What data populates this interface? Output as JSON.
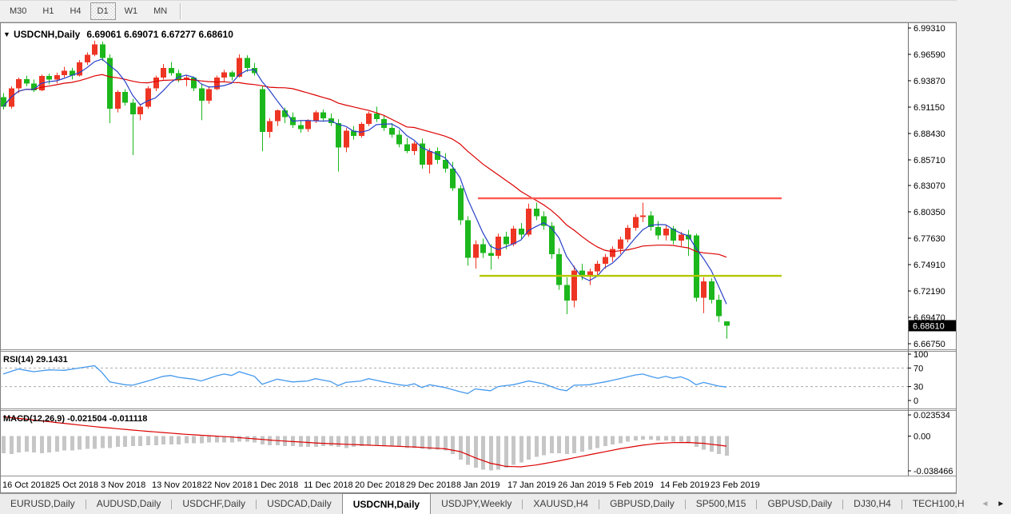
{
  "toolbar": {
    "timeframes": [
      "M30",
      "H1",
      "H4",
      "D1",
      "W1",
      "MN"
    ],
    "active": "D1"
  },
  "icons": {
    "dropdown": "▼",
    "scroll_left": "◄",
    "scroll_right": "►"
  },
  "window": {
    "title_symbol": "USDCNH,Daily",
    "title_ohlc": "6.69061 6.69071 6.67277 6.68610"
  },
  "chart_data": {
    "type": "candlestick",
    "symbol": "USDCNH",
    "timeframe": "Daily",
    "ohlc_display": {
      "open": "6.69061",
      "high": "6.69071",
      "low": "6.67277",
      "close": "6.68610"
    },
    "current_price": "6.68610",
    "current_price_value": 6.6861,
    "y_ticks": [
      {
        "text": "6.99310",
        "v": 6.9931
      },
      {
        "text": "6.96590",
        "v": 6.9659
      },
      {
        "text": "6.93870",
        "v": 6.9387
      },
      {
        "text": "6.91150",
        "v": 6.9115
      },
      {
        "text": "6.88430",
        "v": 6.8843
      },
      {
        "text": "6.85710",
        "v": 6.8571
      },
      {
        "text": "6.83070",
        "v": 6.8307
      },
      {
        "text": "6.80350",
        "v": 6.8035
      },
      {
        "text": "6.77630",
        "v": 6.7763
      },
      {
        "text": "6.74910",
        "v": 6.7491
      },
      {
        "text": "6.72190",
        "v": 6.7219
      },
      {
        "text": "6.69470",
        "v": 6.6947
      },
      {
        "text": "6.66750",
        "v": 6.6675
      }
    ],
    "x_labels": [
      {
        "text": "16 Oct 2018",
        "x": 3
      },
      {
        "text": "25 Oct 2018",
        "x": 63
      },
      {
        "text": "3 Nov 2018",
        "x": 126
      },
      {
        "text": "13 Nov 2018",
        "x": 190
      },
      {
        "text": "22 Nov 2018",
        "x": 253
      },
      {
        "text": "1 Dec 2018",
        "x": 317
      },
      {
        "text": "11 Dec 2018",
        "x": 380
      },
      {
        "text": "20 Dec 2018",
        "x": 444
      },
      {
        "text": "29 Dec 2018",
        "x": 508
      },
      {
        "text": "8 Jan 2019",
        "x": 571
      },
      {
        "text": "17 Jan 2019",
        "x": 635
      },
      {
        "text": "26 Jan 2019",
        "x": 698
      },
      {
        "text": "5 Feb 2019",
        "x": 762
      },
      {
        "text": "14 Feb 2019",
        "x": 826
      },
      {
        "text": "23 Feb 2019",
        "x": 889
      }
    ],
    "colors": {
      "bull": "#EE3524",
      "bear": "#1CB71C",
      "ma_fast": "#2840C8",
      "ma_slow": "#DC0000",
      "hist": "#C6C6C6",
      "signal": "#DC0000",
      "rsi": "#4499EE",
      "res_line": "#FF5A52",
      "sup_line": "#B4C800"
    },
    "hlines": [
      {
        "name": "resistance",
        "value": 6.8175,
        "x1": 598,
        "x2": 978,
        "color": "#FF5A52"
      },
      {
        "name": "support",
        "value": 6.7375,
        "x1": 600,
        "x2": 978,
        "color": "#B4C800"
      }
    ],
    "ma_fast_period": 5,
    "ma_slow_period": 20,
    "candles": [
      [
        6.922,
        6.926,
        6.909,
        6.912
      ],
      [
        6.912,
        6.933,
        6.91,
        6.931
      ],
      [
        6.931,
        6.942,
        6.926,
        6.9405
      ],
      [
        6.9405,
        6.944,
        6.933,
        6.936
      ],
      [
        6.936,
        6.94,
        6.927,
        6.929
      ],
      [
        6.929,
        6.945,
        6.928,
        6.9435
      ],
      [
        6.9435,
        6.946,
        6.935,
        6.94
      ],
      [
        6.94,
        6.947,
        6.936,
        6.9445
      ],
      [
        6.9445,
        6.953,
        6.942,
        6.949
      ],
      [
        6.949,
        6.952,
        6.94,
        6.944
      ],
      [
        6.944,
        6.96,
        6.943,
        6.9575
      ],
      [
        6.9575,
        6.968,
        6.955,
        6.9655
      ],
      [
        6.9655,
        6.98,
        6.964,
        6.976
      ],
      [
        6.976,
        6.979,
        6.959,
        6.962
      ],
      [
        6.962,
        6.966,
        6.895,
        6.91
      ],
      [
        6.91,
        6.929,
        6.906,
        6.927
      ],
      [
        6.927,
        6.93,
        6.913,
        6.916
      ],
      [
        6.916,
        6.92,
        6.862,
        6.904
      ],
      [
        6.904,
        6.915,
        6.898,
        6.912
      ],
      [
        6.912,
        6.933,
        6.91,
        6.931
      ],
      [
        6.931,
        6.944,
        6.928,
        6.942
      ],
      [
        6.942,
        6.956,
        6.94,
        6.952
      ],
      [
        6.952,
        6.958,
        6.944,
        6.9465
      ],
      [
        6.9465,
        6.95,
        6.937,
        6.94
      ],
      [
        6.94,
        6.945,
        6.933,
        6.942
      ],
      [
        6.942,
        6.943,
        6.928,
        6.931
      ],
      [
        6.931,
        6.935,
        6.898,
        6.918
      ],
      [
        6.918,
        6.933,
        6.915,
        6.93
      ],
      [
        6.93,
        6.944,
        6.929,
        6.942
      ],
      [
        6.942,
        6.95,
        6.938,
        6.9475
      ],
      [
        6.9475,
        6.949,
        6.939,
        6.943
      ],
      [
        6.943,
        6.966,
        6.942,
        6.962
      ],
      [
        6.962,
        6.965,
        6.948,
        6.952
      ],
      [
        6.952,
        6.957,
        6.944,
        6.9465
      ],
      [
        6.93,
        6.933,
        6.866,
        6.886
      ],
      [
        6.886,
        6.9,
        6.88,
        6.897
      ],
      [
        6.897,
        6.909,
        6.892,
        6.908
      ],
      [
        6.908,
        6.911,
        6.895,
        6.901
      ],
      [
        6.901,
        6.906,
        6.89,
        6.893
      ],
      [
        6.893,
        6.898,
        6.885,
        6.889
      ],
      [
        6.889,
        6.899,
        6.886,
        6.8975
      ],
      [
        6.8975,
        6.908,
        6.895,
        6.906
      ],
      [
        6.906,
        6.909,
        6.897,
        6.9
      ],
      [
        6.9,
        6.905,
        6.892,
        6.895
      ],
      [
        6.895,
        6.899,
        6.845,
        6.87
      ],
      [
        6.87,
        6.89,
        6.865,
        6.887
      ],
      [
        6.887,
        6.892,
        6.878,
        6.882
      ],
      [
        6.882,
        6.896,
        6.88,
        6.894
      ],
      [
        6.894,
        6.907,
        6.892,
        6.905
      ],
      [
        6.905,
        6.912,
        6.896,
        6.899
      ],
      [
        6.899,
        6.903,
        6.887,
        6.89
      ],
      [
        6.89,
        6.895,
        6.88,
        6.883
      ],
      [
        6.883,
        6.888,
        6.87,
        6.873
      ],
      [
        6.873,
        6.88,
        6.864,
        6.866
      ],
      [
        6.866,
        6.876,
        6.862,
        6.874
      ],
      [
        6.874,
        6.879,
        6.848,
        6.852
      ],
      [
        6.852,
        6.869,
        6.843,
        6.866
      ],
      [
        6.866,
        6.87,
        6.853,
        6.857
      ],
      [
        6.857,
        6.864,
        6.844,
        6.848
      ],
      [
        6.848,
        6.855,
        6.825,
        6.828
      ],
      [
        6.828,
        6.831,
        6.79,
        6.795
      ],
      [
        6.795,
        6.799,
        6.748,
        6.756
      ],
      [
        6.756,
        6.774,
        6.745,
        6.77
      ],
      [
        6.77,
        6.776,
        6.756,
        6.761
      ],
      [
        6.761,
        6.77,
        6.744,
        6.758
      ],
      [
        6.758,
        6.781,
        6.755,
        6.778
      ],
      [
        6.778,
        6.783,
        6.765,
        6.77
      ],
      [
        6.77,
        6.789,
        6.768,
        6.786
      ],
      [
        6.786,
        6.792,
        6.776,
        6.78
      ],
      [
        6.78,
        6.812,
        6.778,
        6.807
      ],
      [
        6.807,
        6.813,
        6.795,
        6.799
      ],
      [
        6.799,
        6.804,
        6.785,
        6.789
      ],
      [
        6.789,
        6.793,
        6.755,
        6.76
      ],
      [
        6.76,
        6.766,
        6.723,
        6.728
      ],
      [
        6.728,
        6.736,
        6.698,
        6.712
      ],
      [
        6.712,
        6.748,
        6.705,
        6.743
      ],
      [
        6.743,
        6.75,
        6.733,
        6.738
      ],
      [
        6.738,
        6.745,
        6.728,
        6.742
      ],
      [
        6.742,
        6.753,
        6.738,
        6.75
      ],
      [
        6.75,
        6.76,
        6.745,
        6.757
      ],
      [
        6.757,
        6.768,
        6.752,
        6.765
      ],
      [
        6.765,
        6.778,
        6.76,
        6.775
      ],
      [
        6.775,
        6.79,
        6.772,
        6.787
      ],
      [
        6.787,
        6.801,
        6.784,
        6.798
      ],
      [
        6.798,
        6.813,
        6.793,
        6.8
      ],
      [
        6.8,
        6.804,
        6.784,
        6.788
      ],
      [
        6.788,
        6.794,
        6.775,
        6.779
      ],
      [
        6.779,
        6.79,
        6.774,
        6.786
      ],
      [
        6.786,
        6.789,
        6.77,
        6.774
      ],
      [
        6.774,
        6.783,
        6.768,
        6.78
      ],
      [
        6.78,
        6.785,
        6.758,
        6.775
      ],
      [
        6.779,
        6.781,
        6.711,
        6.715
      ],
      [
        6.715,
        6.736,
        6.699,
        6.732
      ],
      [
        6.732,
        6.735,
        6.709,
        6.713
      ],
      [
        6.713,
        6.718,
        6.69,
        6.696
      ],
      [
        6.6906,
        6.6907,
        6.6728,
        6.6861
      ]
    ],
    "rsi": {
      "label": "RSI(14)",
      "value": "29.1431",
      "axis": [
        {
          "text": "100",
          "v": 100
        },
        {
          "text": "70",
          "v": 70
        },
        {
          "text": "30",
          "v": 30
        },
        {
          "text": "0",
          "v": 0
        }
      ],
      "dashed_levels": [
        70,
        30
      ],
      "keypoints": [
        [
          0,
          57
        ],
        [
          2,
          68
        ],
        [
          4,
          62
        ],
        [
          6,
          66
        ],
        [
          8,
          65
        ],
        [
          10,
          70
        ],
        [
          12,
          75
        ],
        [
          13,
          60
        ],
        [
          14,
          40
        ],
        [
          16,
          34
        ],
        [
          17,
          33
        ],
        [
          19,
          42
        ],
        [
          21,
          52
        ],
        [
          22,
          54
        ],
        [
          23,
          50
        ],
        [
          25,
          46
        ],
        [
          26,
          42
        ],
        [
          28,
          53
        ],
        [
          29,
          57
        ],
        [
          30,
          54
        ],
        [
          31,
          62
        ],
        [
          33,
          52
        ],
        [
          34,
          35
        ],
        [
          36,
          46
        ],
        [
          38,
          40
        ],
        [
          40,
          42
        ],
        [
          41,
          47
        ],
        [
          43,
          41
        ],
        [
          44,
          32
        ],
        [
          45,
          39
        ],
        [
          47,
          42
        ],
        [
          48,
          47
        ],
        [
          50,
          40
        ],
        [
          52,
          34
        ],
        [
          53,
          32
        ],
        [
          54,
          36
        ],
        [
          55,
          28
        ],
        [
          56,
          34
        ],
        [
          58,
          28
        ],
        [
          60,
          19
        ],
        [
          61,
          15
        ],
        [
          62,
          25
        ],
        [
          64,
          21
        ],
        [
          65,
          30
        ],
        [
          67,
          34
        ],
        [
          69,
          42
        ],
        [
          71,
          36
        ],
        [
          73,
          24
        ],
        [
          74,
          21
        ],
        [
          75,
          33
        ],
        [
          77,
          34
        ],
        [
          79,
          40
        ],
        [
          81,
          47
        ],
        [
          83,
          55
        ],
        [
          84,
          57
        ],
        [
          85,
          52
        ],
        [
          86,
          48
        ],
        [
          87,
          52
        ],
        [
          88,
          48
        ],
        [
          89,
          51
        ],
        [
          90,
          45
        ],
        [
          91,
          34
        ],
        [
          92,
          39
        ],
        [
          93,
          35
        ],
        [
          94,
          31
        ],
        [
          95,
          29
        ]
      ]
    },
    "macd": {
      "label": "MACD(12,26,9)",
      "values": "-0.021504 -0.011118",
      "axis": [
        {
          "text": "0.023534",
          "v": 0.023534
        },
        {
          "text": "0.00",
          "v": 0
        },
        {
          "text": "-0.038466",
          "v": -0.038466
        }
      ],
      "hist": [
        -0.019,
        -0.02,
        -0.018,
        -0.017,
        -0.018,
        -0.019,
        -0.018,
        -0.017,
        -0.016,
        -0.016,
        -0.015,
        -0.014,
        -0.014,
        -0.013,
        -0.013,
        -0.012,
        -0.012,
        -0.011,
        -0.011,
        -0.01,
        -0.01,
        -0.009,
        -0.009,
        -0.009,
        -0.008,
        -0.008,
        -0.008,
        -0.007,
        -0.007,
        -0.007,
        -0.007,
        -0.006,
        -0.006,
        -0.007,
        -0.009,
        -0.01,
        -0.01,
        -0.011,
        -0.011,
        -0.012,
        -0.012,
        -0.012,
        -0.011,
        -0.011,
        -0.012,
        -0.013,
        -0.012,
        -0.011,
        -0.01,
        -0.01,
        -0.01,
        -0.011,
        -0.012,
        -0.013,
        -0.013,
        -0.014,
        -0.015,
        -0.015,
        -0.016,
        -0.02,
        -0.026,
        -0.032,
        -0.035,
        -0.037,
        -0.038,
        -0.037,
        -0.035,
        -0.032,
        -0.029,
        -0.026,
        -0.023,
        -0.021,
        -0.019,
        -0.019,
        -0.02,
        -0.019,
        -0.017,
        -0.015,
        -0.013,
        -0.011,
        -0.009,
        -0.008,
        -0.006,
        -0.005,
        -0.004,
        -0.004,
        -0.005,
        -0.005,
        -0.006,
        -0.006,
        -0.008,
        -0.012,
        -0.015,
        -0.017,
        -0.02,
        -0.0215
      ],
      "signal_keypoints": [
        [
          0,
          0.0215
        ],
        [
          6,
          0.016
        ],
        [
          12,
          0.0105
        ],
        [
          18,
          0.006
        ],
        [
          24,
          0.002
        ],
        [
          30,
          -0.001
        ],
        [
          36,
          -0.005
        ],
        [
          42,
          -0.008
        ],
        [
          48,
          -0.01
        ],
        [
          54,
          -0.012
        ],
        [
          58,
          -0.014
        ],
        [
          60,
          -0.017
        ],
        [
          62,
          -0.024
        ],
        [
          64,
          -0.03
        ],
        [
          66,
          -0.0335
        ],
        [
          68,
          -0.034
        ],
        [
          70,
          -0.032
        ],
        [
          72,
          -0.029
        ],
        [
          75,
          -0.024
        ],
        [
          78,
          -0.019
        ],
        [
          81,
          -0.014
        ],
        [
          84,
          -0.01
        ],
        [
          86,
          -0.008
        ],
        [
          88,
          -0.0072
        ],
        [
          90,
          -0.007
        ],
        [
          92,
          -0.008
        ],
        [
          94,
          -0.01
        ],
        [
          95,
          -0.0111
        ]
      ]
    }
  },
  "tabs": {
    "items": [
      {
        "label": "EURUSD,Daily",
        "active": false
      },
      {
        "label": "AUDUSD,Daily",
        "active": false
      },
      {
        "label": "USDCHF,Daily",
        "active": false
      },
      {
        "label": "USDCAD,Daily",
        "active": false
      },
      {
        "label": "USDCNH,Daily",
        "active": true
      },
      {
        "label": "USDJPY,Weekly",
        "active": false
      },
      {
        "label": "XAUUSD,H4",
        "active": false
      },
      {
        "label": "GBPUSD,Daily",
        "active": false
      },
      {
        "label": "SP500,M15",
        "active": false
      },
      {
        "label": "GBPUSD,Daily",
        "active": false
      },
      {
        "label": "DJ30,H4",
        "active": false
      },
      {
        "label": "TECH100,H",
        "active": false
      }
    ]
  }
}
